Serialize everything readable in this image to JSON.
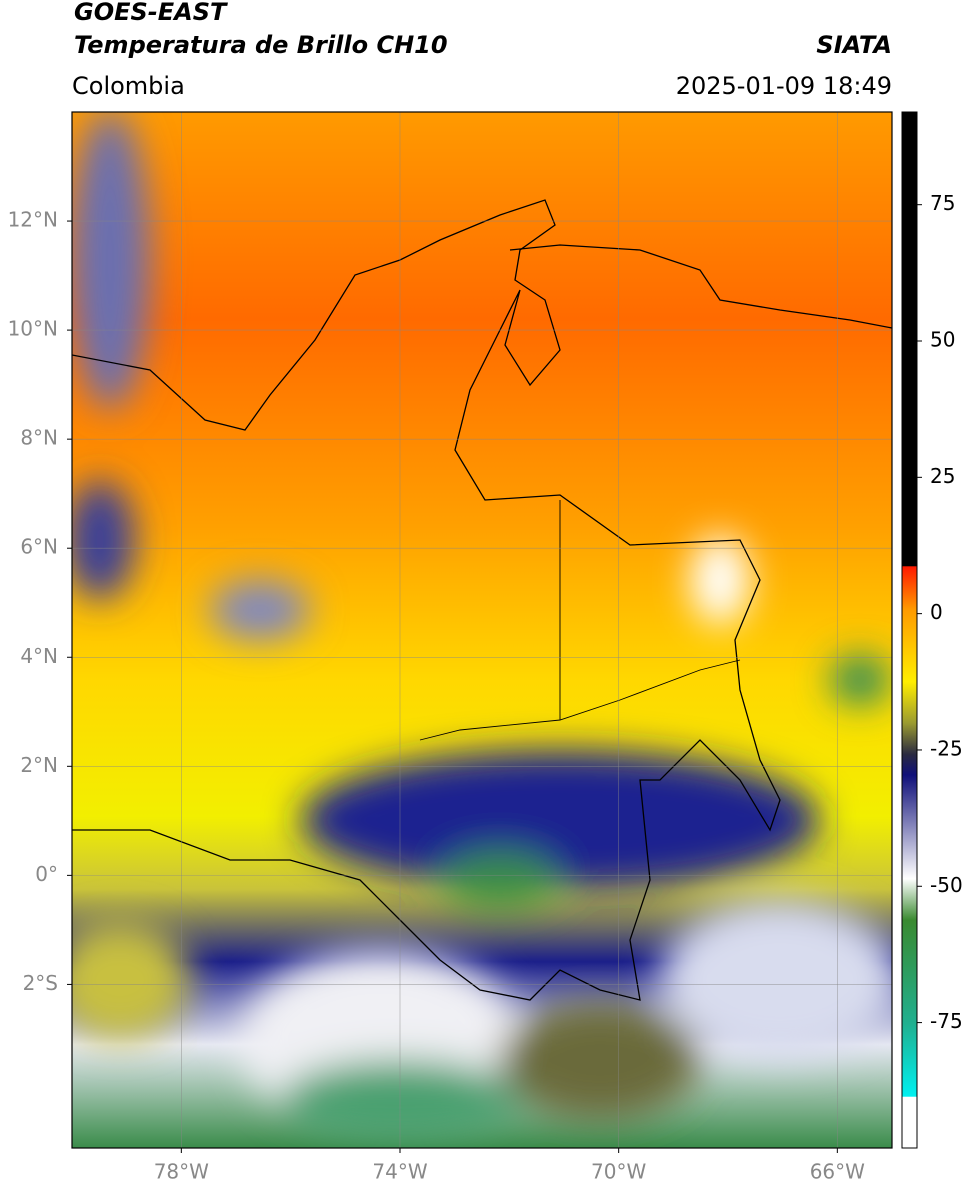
{
  "header": {
    "satellite": "GOES-EAST",
    "product": "Temperatura de Brillo CH10",
    "source": "SIATA",
    "region": "Colombia",
    "datetime": "2025-01-09 18:49"
  },
  "map": {
    "xlim": [
      -80,
      -65
    ],
    "ylim": [
      -5,
      14
    ],
    "xticks": [
      {
        "value": -78,
        "label": "78°W"
      },
      {
        "value": -74,
        "label": "74°W"
      },
      {
        "value": -70,
        "label": "70°W"
      },
      {
        "value": -66,
        "label": "66°W"
      }
    ],
    "yticks": [
      {
        "value": 12,
        "label": "12°N"
      },
      {
        "value": 10,
        "label": "10°N"
      },
      {
        "value": 8,
        "label": "8°N"
      },
      {
        "value": 6,
        "label": "6°N"
      },
      {
        "value": 4,
        "label": "4°N"
      },
      {
        "value": 2,
        "label": "2°N"
      },
      {
        "value": 0,
        "label": "0°"
      },
      {
        "value": -2,
        "label": "2°S"
      }
    ],
    "grid": true
  },
  "colorbar": {
    "clim": [
      -98,
      92
    ],
    "ticks": [
      75,
      50,
      25,
      0,
      -25,
      -50,
      -75
    ]
  }
}
